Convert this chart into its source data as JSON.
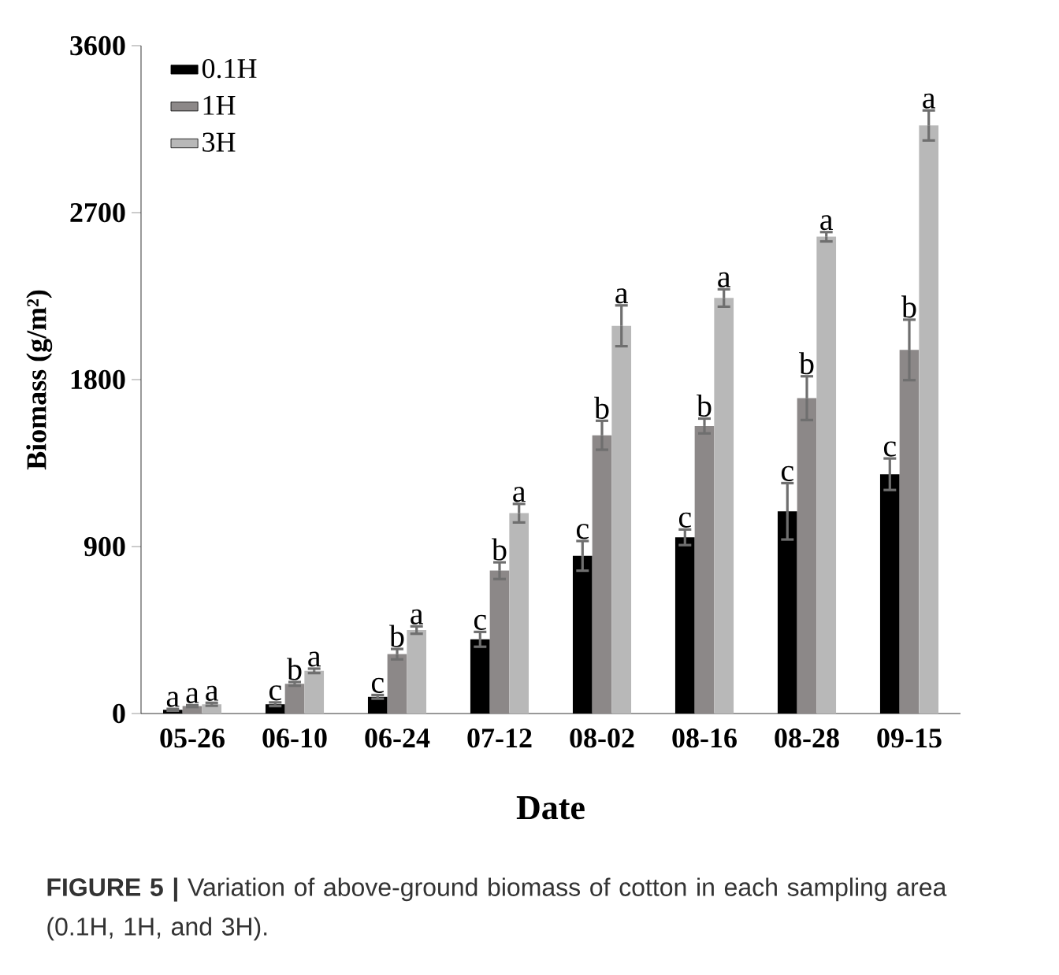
{
  "chart_data": {
    "type": "bar",
    "xlabel": "Date",
    "ylabel": "Biomass (g/m²)",
    "categories": [
      "05-26",
      "06-10",
      "06-24",
      "07-12",
      "08-02",
      "08-16",
      "08-28",
      "09-15"
    ],
    "series": [
      {
        "name": "0.1H",
        "color": "#000000",
        "values": [
          20,
          50,
          90,
          400,
          850,
          950,
          1090,
          1290
        ],
        "errors": [
          5,
          10,
          10,
          40,
          80,
          42,
          152,
          85
        ],
        "value_labels": [
          "a",
          "c",
          "c",
          "c",
          "c",
          "c",
          "c",
          "c"
        ]
      },
      {
        "name": "1H",
        "color": "#8c8888",
        "values": [
          40,
          160,
          320,
          770,
          1500,
          1550,
          1700,
          1960
        ],
        "errors": [
          5,
          10,
          28,
          45,
          78,
          40,
          118,
          163
        ],
        "value_labels": [
          "a",
          "b",
          "b",
          "b",
          "b",
          "b",
          "b",
          "b"
        ]
      },
      {
        "name": "3H",
        "color": "#b8b8b8",
        "values": [
          50,
          230,
          450,
          1080,
          2090,
          2240,
          2570,
          3170
        ],
        "errors": [
          8,
          12,
          20,
          50,
          110,
          47,
          25,
          81
        ],
        "value_labels": [
          "a",
          "a",
          "a",
          "a",
          "a",
          "a",
          "a",
          "a"
        ]
      }
    ],
    "ylim": [
      0,
      3600
    ],
    "yticks": [
      0,
      900,
      1800,
      2700,
      3600
    ],
    "grid": false,
    "legend": "top left",
    "annotations": [
      "**FIGURE 5 |** Variation of above-ground biomass of cotton in each sampling area (0.1H, 1H, and 3H)."
    ]
  }
}
